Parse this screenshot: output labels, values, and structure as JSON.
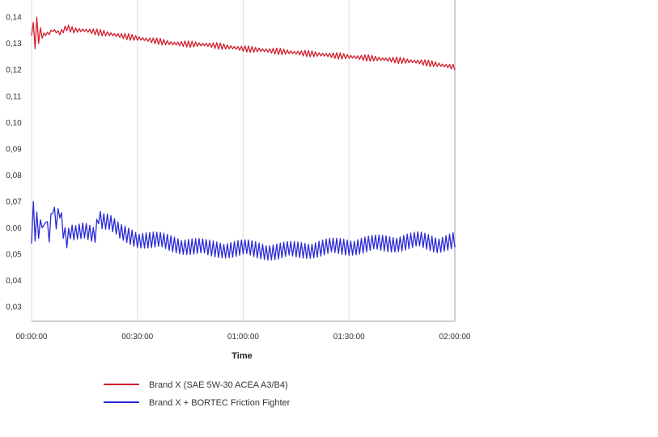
{
  "chart_data": {
    "type": "line",
    "xlabel": "Time",
    "ylabel": "",
    "x_ticks": [
      "00:00:00",
      "00:30:00",
      "01:00:00",
      "01:30:00",
      "02:00:00"
    ],
    "x_range_minutes": [
      0,
      120
    ],
    "y_ticks": [
      "0,14",
      "0,13",
      "0,12",
      "0,11",
      "0,10",
      "0,09",
      "0,08",
      "0,07",
      "0,06",
      "0,05",
      "0,04",
      "0,03"
    ],
    "ylim": [
      0.03,
      0.14
    ],
    "grid": true,
    "legend_position": "bottom",
    "series": [
      {
        "name": "Brand X (SAE 5W-30 ACEA A3/B4)",
        "color": "#d0202e",
        "x": [
          0,
          0.5,
          1,
          1.5,
          2,
          2.5,
          3,
          3.5,
          4,
          6,
          8,
          10,
          12,
          15,
          20,
          25,
          30,
          40,
          50,
          60,
          70,
          80,
          90,
          100,
          110,
          115,
          120
        ],
        "y": [
          0.133,
          0.138,
          0.128,
          0.14,
          0.13,
          0.136,
          0.132,
          0.134,
          0.133,
          0.135,
          0.134,
          0.136,
          0.135,
          0.135,
          0.134,
          0.133,
          0.132,
          0.13,
          0.1295,
          0.128,
          0.127,
          0.126,
          0.125,
          0.124,
          0.123,
          0.122,
          0.121
        ]
      },
      {
        "name": "Brand X + BORTEC Friction Fighter",
        "color": "#2a2ad6",
        "x": [
          0,
          0.5,
          1,
          1.5,
          2,
          2.5,
          3,
          4,
          5,
          6,
          7,
          8,
          9,
          10,
          11,
          12,
          15,
          18,
          19,
          20,
          22,
          25,
          30,
          40,
          50,
          60,
          70,
          80,
          90,
          100,
          110,
          115,
          120
        ],
        "y": [
          0.054,
          0.07,
          0.055,
          0.066,
          0.056,
          0.063,
          0.06,
          0.062,
          0.058,
          0.069,
          0.063,
          0.067,
          0.059,
          0.055,
          0.058,
          0.057,
          0.059,
          0.058,
          0.065,
          0.063,
          0.062,
          0.058,
          0.056,
          0.054,
          0.052,
          0.052,
          0.051,
          0.052,
          0.053,
          0.054,
          0.055,
          0.054,
          0.055
        ]
      }
    ]
  }
}
